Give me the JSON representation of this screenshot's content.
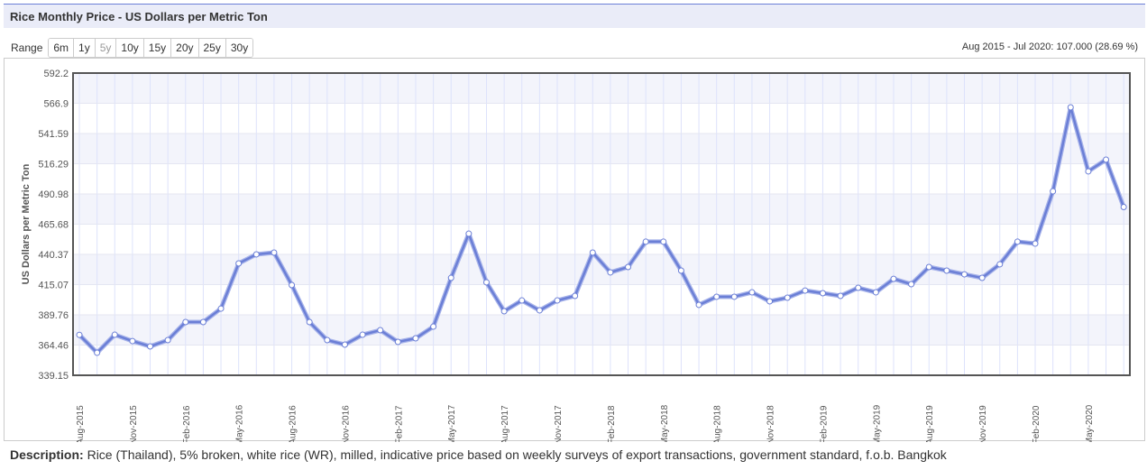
{
  "title": "Rice Monthly Price - US Dollars per Metric Ton",
  "range": {
    "label": "Range",
    "buttons": [
      "6m",
      "1y",
      "5y",
      "10y",
      "15y",
      "20y",
      "25y",
      "30y"
    ],
    "disabled": "5y"
  },
  "summary": "Aug 2015 - Jul 2020: 107.000 (28.69 %)",
  "description": {
    "label": "Description:",
    "text": " Rice (Thailand), 5% broken, white rice (WR), milled, indicative price based on weekly surveys of export transactions, government standard, f.o.b. Bangkok"
  },
  "chart_data": {
    "type": "line",
    "ylabel": "US Dollars per Metric Ton",
    "ylim": [
      339.15,
      592.2
    ],
    "yticks": [
      "339.15",
      "364.46",
      "389.76",
      "415.07",
      "440.37",
      "465.68",
      "490.98",
      "516.29",
      "541.59",
      "566.9",
      "592.2"
    ],
    "xticks": [
      "Aug-2015",
      "Nov-2015",
      "Feb-2016",
      "May-2016",
      "Aug-2016",
      "Nov-2016",
      "Feb-2017",
      "May-2017",
      "Aug-2017",
      "Nov-2017",
      "Feb-2018",
      "May-2018",
      "Aug-2018",
      "Nov-2018",
      "Feb-2019",
      "May-2019",
      "Aug-2019",
      "Nov-2019",
      "Feb-2020",
      "May-2020"
    ],
    "x_start": "Aug-2015",
    "x_end": "Jul-2020",
    "grid": true,
    "line_color": "#6b7fd6",
    "values": [
      373.0,
      358.0,
      373.1,
      367.8,
      363.3,
      368.6,
      383.7,
      383.7,
      395.0,
      432.8,
      440.4,
      441.9,
      414.7,
      383.7,
      368.6,
      364.8,
      373.1,
      376.9,
      367.1,
      370.1,
      379.9,
      420.7,
      457.7,
      417.0,
      392.8,
      401.8,
      393.5,
      401.8,
      405.6,
      441.9,
      425.3,
      429.8,
      451.0,
      451.0,
      426.8,
      398.1,
      404.9,
      404.9,
      408.6,
      401.1,
      404.1,
      410.1,
      407.9,
      405.6,
      412.4,
      408.6,
      419.9,
      415.4,
      429.8,
      426.8,
      423.7,
      420.7,
      432.1,
      451.0,
      449.4,
      493.2,
      563.5,
      509.9,
      519.7,
      480.0
    ]
  }
}
